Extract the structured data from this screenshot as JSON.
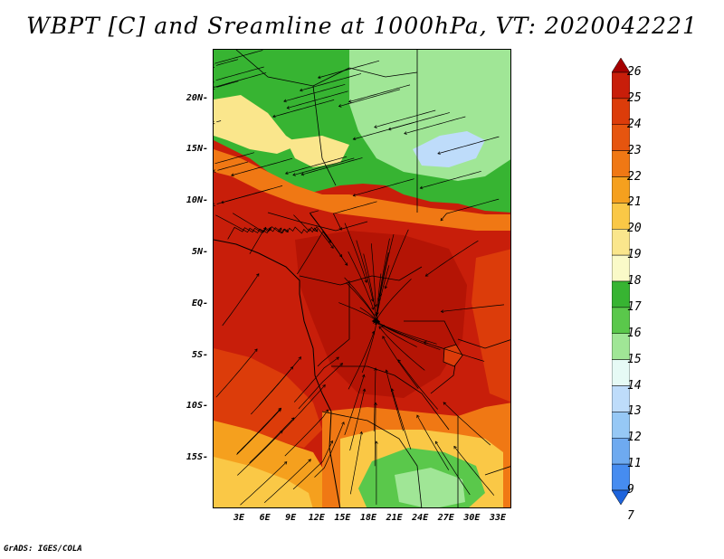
{
  "title": "WBPT [C] and Sreamline at 1000hPa, VT: 2020042221",
  "footer": "GrADS: IGES/COLA",
  "map": {
    "lat_range": [
      -20,
      24
    ],
    "lon_range": [
      0,
      35
    ],
    "y_axis_labels": [
      "20N",
      "15N",
      "10N",
      "5N",
      "EQ",
      "5S",
      "10S",
      "15S"
    ],
    "x_axis_labels": [
      "3E",
      "6E",
      "9E",
      "12E",
      "15E",
      "18E",
      "21E",
      "24E",
      "27E",
      "30E",
      "33E"
    ]
  },
  "colorbar": {
    "levels": [
      "26",
      "25",
      "24",
      "23",
      "22",
      "21",
      "20",
      "19",
      "18",
      "17",
      "16",
      "15",
      "14",
      "13",
      "12",
      "11",
      "9",
      "7"
    ],
    "colors": [
      "#a50000",
      "#c81e0a",
      "#dc3c0a",
      "#e6550f",
      "#f07814",
      "#f5a01e",
      "#fac846",
      "#fae68c",
      "#fafac8",
      "#37b432",
      "#5ac84b",
      "#a0e696",
      "#e6faf5",
      "#bedcfa",
      "#96c8f5",
      "#6eaaf0",
      "#468cf0",
      "#1e64dc"
    ]
  },
  "field_colors": {
    "hot": "#c81e0a",
    "very_hot": "#b41405",
    "warm": "#dc3c0a",
    "orange": "#f07814",
    "light_orange": "#f5a01e",
    "yellow": "#fac846",
    "pale": "#fae68c",
    "green": "#37b432",
    "mid_green": "#5ac84b",
    "light_green": "#a0e696",
    "pale_blue": "#bedcfa",
    "cyan_white": "#e6faf5"
  }
}
